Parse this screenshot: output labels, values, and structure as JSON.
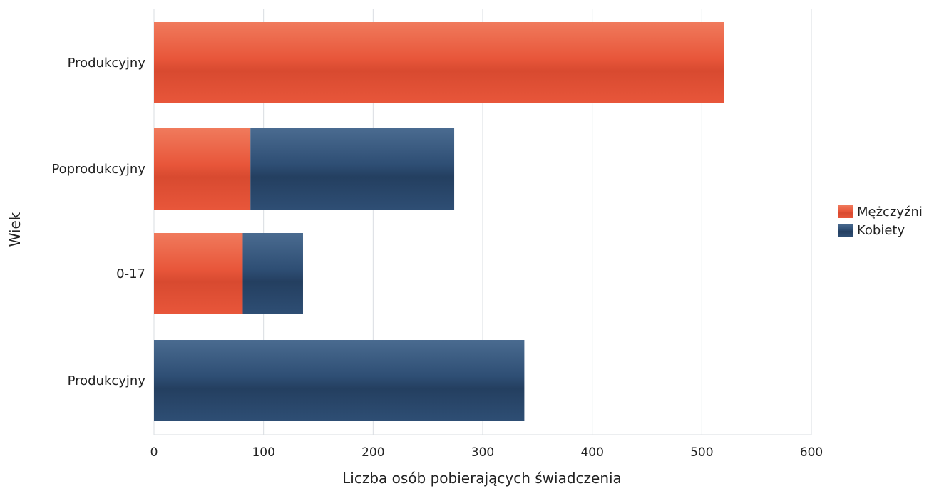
{
  "chart_data": {
    "type": "bar",
    "orientation": "horizontal",
    "stacked": true,
    "categories": [
      "Produkcyjny",
      "Poprodukcyjny",
      "0-17",
      "Produkcyjny"
    ],
    "series": [
      {
        "name": "Mężczyźni",
        "color": "#e8563a",
        "values": [
          520,
          88,
          81,
          0
        ]
      },
      {
        "name": "Kobiety",
        "color": "#2e4e74",
        "values": [
          0,
          186,
          55,
          338
        ]
      }
    ],
    "xlabel": "Liczba osób pobierających świadczenia",
    "ylabel": "Wiek",
    "xlim": [
      0,
      600
    ],
    "xticks": [
      "0",
      "100",
      "200",
      "300",
      "400",
      "500",
      "600"
    ],
    "grid": true,
    "legend_position": "right"
  }
}
